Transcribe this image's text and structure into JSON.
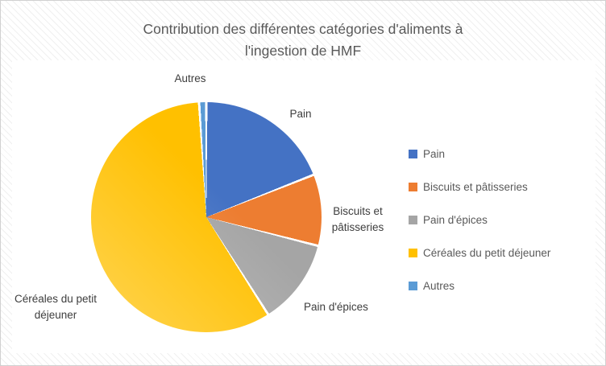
{
  "header": {
    "title_lines": [
      "Contribution des différentes catégories d'aliments à",
      "l'ingestion de HMF"
    ]
  },
  "chart_data": {
    "type": "pie",
    "title": "Contribution des différentes catégories d'aliments à l'ingestion de HMF",
    "categories": [
      "Pain",
      "Biscuits et pâtisseries",
      "Pain d'épices",
      "Céréales du petit déjeuner",
      "Autres"
    ],
    "values": [
      19,
      10,
      12,
      58,
      1
    ],
    "unit": "percent-estimated",
    "colors": [
      "#4472C4",
      "#ED7D31",
      "#A5A5A5",
      "#FFC000",
      "#5B9BD5"
    ],
    "start_angle_deg": 0,
    "direction": "clockwise",
    "legend_position": "right",
    "slice_label_texts": {
      "pain": "Pain",
      "biscuits": "Biscuits et pâtisseries",
      "pain_epices": "Pain d'épices",
      "cereales": "Céréales du petit déjeuner",
      "autres": "Autres"
    }
  }
}
